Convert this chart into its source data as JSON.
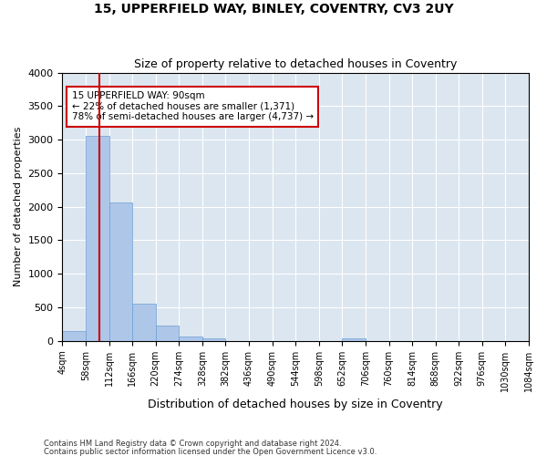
{
  "title": "15, UPPERFIELD WAY, BINLEY, COVENTRY, CV3 2UY",
  "subtitle": "Size of property relative to detached houses in Coventry",
  "xlabel": "Distribution of detached houses by size in Coventry",
  "ylabel": "Number of detached properties",
  "bar_color": "#aec6e8",
  "bar_edge_color": "#6a9fd4",
  "background_color": "#dce6f0",
  "grid_color": "#ffffff",
  "fig_background": "#ffffff",
  "bin_edges": [
    4,
    58,
    112,
    166,
    220,
    274,
    328,
    382,
    436,
    490,
    544,
    598,
    652,
    706,
    760,
    814,
    868,
    922,
    976,
    1030,
    1084
  ],
  "bar_heights": [
    150,
    3060,
    2060,
    560,
    230,
    70,
    40,
    0,
    0,
    0,
    0,
    0,
    40,
    0,
    0,
    0,
    0,
    0,
    0,
    0
  ],
  "property_size": 90,
  "red_line_color": "#cc0000",
  "annotation_text": "15 UPPERFIELD WAY: 90sqm\n← 22% of detached houses are smaller (1,371)\n78% of semi-detached houses are larger (4,737) →",
  "annotation_box_color": "#ffffff",
  "annotation_border_color": "#cc0000",
  "ylim": [
    0,
    4000
  ],
  "yticks": [
    0,
    500,
    1000,
    1500,
    2000,
    2500,
    3000,
    3500,
    4000
  ],
  "footer_line1": "Contains HM Land Registry data © Crown copyright and database right 2024.",
  "footer_line2": "Contains public sector information licensed under the Open Government Licence v3.0."
}
